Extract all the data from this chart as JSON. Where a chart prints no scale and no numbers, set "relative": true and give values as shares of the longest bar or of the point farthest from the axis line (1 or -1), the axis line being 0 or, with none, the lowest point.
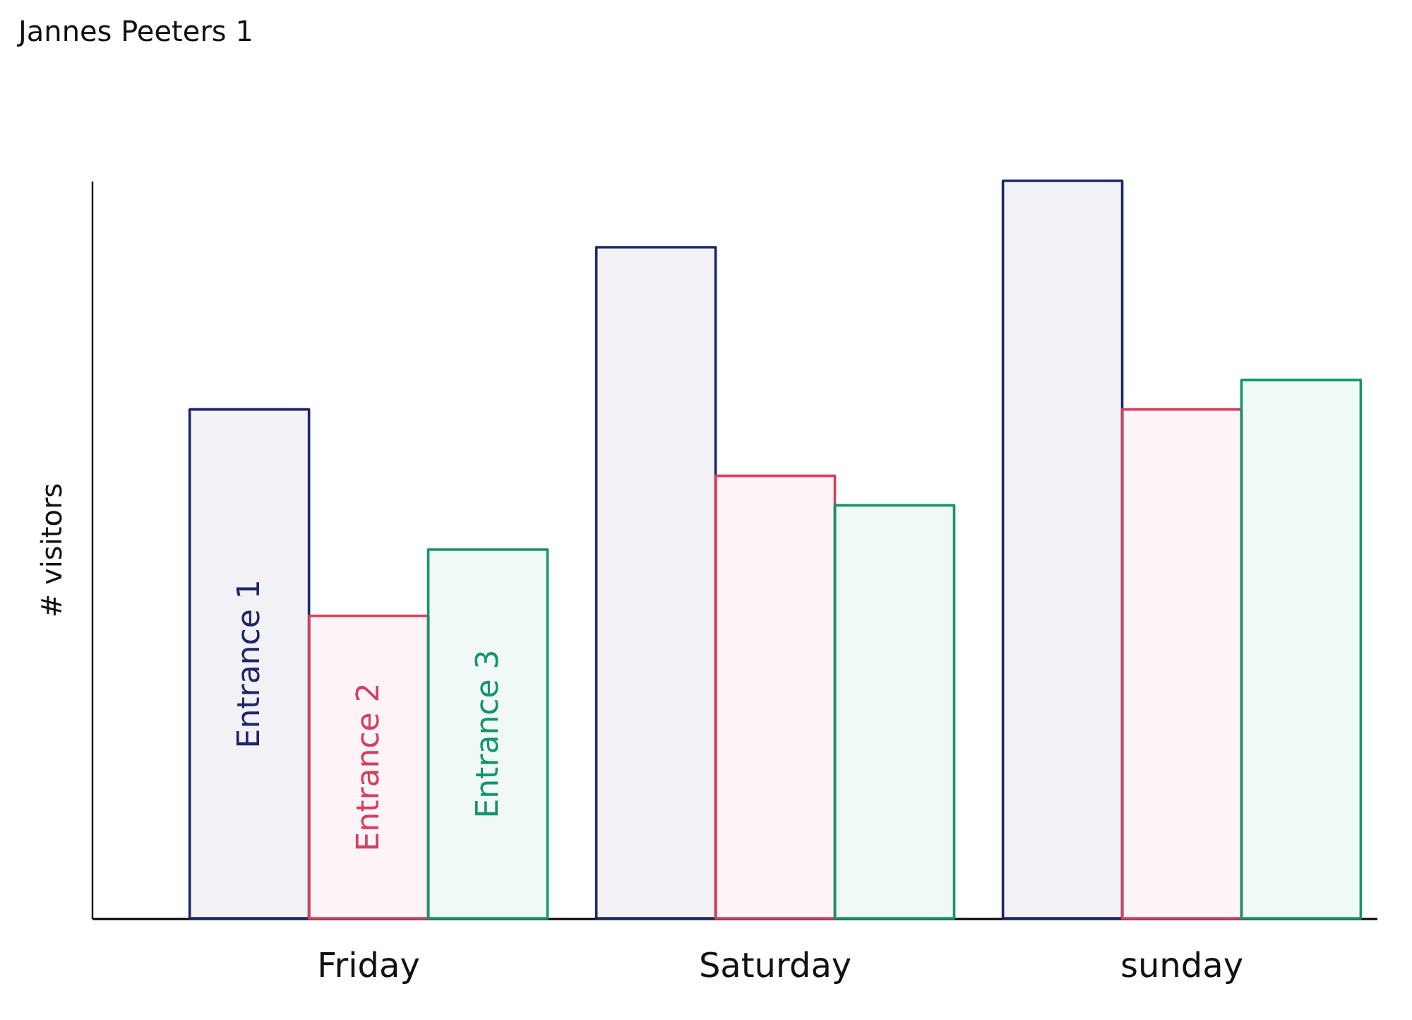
{
  "chart_data": {
    "type": "bar",
    "title": "Jannes Peeters 1",
    "ylabel": "# visitors",
    "categories": [
      "Friday",
      "Saturday",
      "sunday"
    ],
    "relative": true,
    "series": [
      {
        "name": "Entrance 1",
        "color": "#1c2766",
        "values": [
          0.69,
          0.91,
          1
        ]
      },
      {
        "name": "Entrance 2",
        "color": "#d2405e",
        "values": [
          0.41,
          0.6,
          0.69
        ]
      },
      {
        "name": "Entrance 3",
        "color": "#14956a",
        "values": [
          0.5,
          0.56,
          0.73
        ]
      }
    ],
    "legend": false,
    "grid": false
  }
}
